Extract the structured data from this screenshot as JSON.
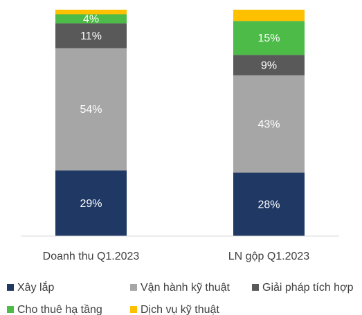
{
  "chart_data": {
    "type": "stacked_bar",
    "categories": [
      "Doanh thu Q1.2023",
      "LN gộp Q1.2023"
    ],
    "series": [
      {
        "name": "Xây lắp",
        "color": "#1f3864",
        "values": [
          29,
          28
        ],
        "value_labels": [
          "29%",
          "28%"
        ]
      },
      {
        "name": "Vận hành kỹ thuật",
        "color": "#a6a6a6",
        "values": [
          54,
          43
        ],
        "value_labels": [
          "54%",
          "43%"
        ]
      },
      {
        "name": "Giải pháp tích hợp",
        "color": "#595959",
        "values": [
          11,
          9
        ],
        "value_labels": [
          "11%",
          "9%"
        ]
      },
      {
        "name": "Cho thuê hạ tầng",
        "color": "#4cbb47",
        "values": [
          4,
          15
        ],
        "value_labels": [
          "4%",
          "15%"
        ]
      },
      {
        "name": "Dịch vụ kỹ thuật",
        "color": "#ffc000",
        "values": [
          2,
          5
        ]
      }
    ]
  }
}
